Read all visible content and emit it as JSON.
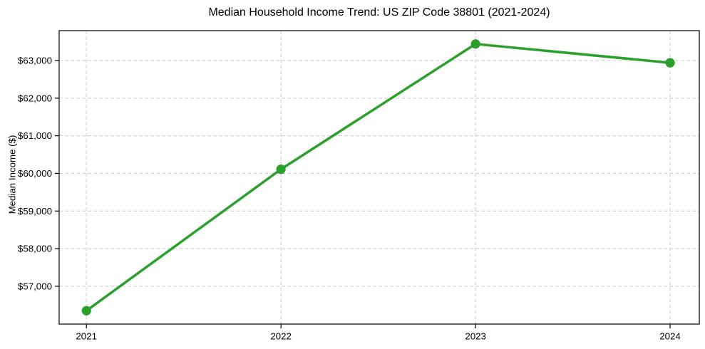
{
  "chart_data": {
    "type": "line",
    "title": "Median Household Income Trend: US ZIP Code 38801 (2021-2024)",
    "xlabel": "",
    "ylabel": "Median Income ($)",
    "x": [
      2021,
      2022,
      2023,
      2024
    ],
    "x_tick_labels": [
      "2021",
      "2022",
      "2023",
      "2024"
    ],
    "series": [
      {
        "name": "Median household income",
        "values": [
          56350,
          60110,
          63440,
          62940
        ]
      }
    ],
    "y_ticks": [
      57000,
      58000,
      59000,
      60000,
      61000,
      62000,
      63000
    ],
    "y_tick_labels": [
      "$57,000",
      "$58,000",
      "$59,000",
      "$60,000",
      "$61,000",
      "$62,000",
      "$63,000"
    ],
    "xlim": [
      2020.86,
      2024.15
    ],
    "ylim": [
      55995,
      63795
    ],
    "grid": true,
    "grid_style": "dashed",
    "legend": "none",
    "colors": {
      "line": "#2ca02c",
      "marker": "#2ca02c",
      "grid": "#cccccc",
      "axis": "#000000",
      "background": "#ffffff"
    }
  }
}
